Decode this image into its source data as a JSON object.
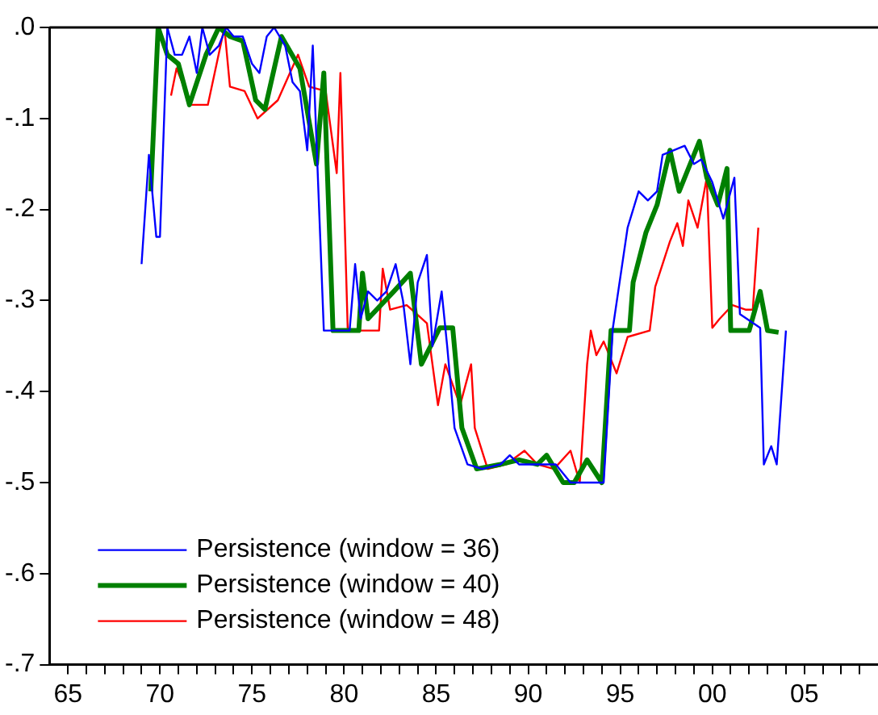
{
  "chart_data": {
    "type": "line",
    "xlim": [
      1964,
      2009
    ],
    "ylim": [
      -0.7,
      0
    ],
    "xticks": [
      {
        "value": 1965,
        "label": "65"
      },
      {
        "value": 1966,
        "label": null
      },
      {
        "value": 1967,
        "label": null
      },
      {
        "value": 1968,
        "label": null
      },
      {
        "value": 1969,
        "label": null
      },
      {
        "value": 1970,
        "label": "70"
      },
      {
        "value": 1971,
        "label": null
      },
      {
        "value": 1972,
        "label": null
      },
      {
        "value": 1973,
        "label": null
      },
      {
        "value": 1974,
        "label": null
      },
      {
        "value": 1975,
        "label": "75"
      },
      {
        "value": 1976,
        "label": null
      },
      {
        "value": 1977,
        "label": null
      },
      {
        "value": 1978,
        "label": null
      },
      {
        "value": 1979,
        "label": null
      },
      {
        "value": 1980,
        "label": "80"
      },
      {
        "value": 1981,
        "label": null
      },
      {
        "value": 1982,
        "label": null
      },
      {
        "value": 1983,
        "label": null
      },
      {
        "value": 1984,
        "label": null
      },
      {
        "value": 1985,
        "label": "85"
      },
      {
        "value": 1986,
        "label": null
      },
      {
        "value": 1987,
        "label": null
      },
      {
        "value": 1988,
        "label": null
      },
      {
        "value": 1989,
        "label": null
      },
      {
        "value": 1990,
        "label": "90"
      },
      {
        "value": 1991,
        "label": null
      },
      {
        "value": 1992,
        "label": null
      },
      {
        "value": 1993,
        "label": null
      },
      {
        "value": 1994,
        "label": null
      },
      {
        "value": 1995,
        "label": "95"
      },
      {
        "value": 1996,
        "label": null
      },
      {
        "value": 1997,
        "label": null
      },
      {
        "value": 1998,
        "label": null
      },
      {
        "value": 1999,
        "label": null
      },
      {
        "value": 2000,
        "label": "00"
      },
      {
        "value": 2001,
        "label": null
      },
      {
        "value": 2002,
        "label": null
      },
      {
        "value": 2003,
        "label": null
      },
      {
        "value": 2004,
        "label": null
      },
      {
        "value": 2005,
        "label": "05"
      },
      {
        "value": 2006,
        "label": null
      },
      {
        "value": 2007,
        "label": null
      },
      {
        "value": 2008,
        "label": null
      }
    ],
    "yticks": [
      {
        "value": -0.7,
        "label": "-.7"
      },
      {
        "value": -0.6,
        "label": "-.6"
      },
      {
        "value": -0.5,
        "label": "-.5"
      },
      {
        "value": -0.4,
        "label": "-.4"
      },
      {
        "value": -0.3,
        "label": "-.3"
      },
      {
        "value": -0.2,
        "label": "-.2"
      },
      {
        "value": -0.1,
        "label": "-.1"
      },
      {
        "value": 0,
        "label": ".0"
      }
    ],
    "grid": false,
    "legend": "bottom left",
    "marker": "none",
    "line_style": "solid",
    "series": [
      {
        "name": "Persistence (window = 36)",
        "color": "#0000ff",
        "x": [
          1969.0,
          1969.4,
          1969.8,
          1970.0,
          1970.4,
          1970.8,
          1971.2,
          1971.6,
          1972.0,
          1972.3,
          1972.7,
          1973.2,
          1973.6,
          1974.0,
          1974.5,
          1975.0,
          1975.4,
          1975.8,
          1976.2,
          1976.8,
          1977.2,
          1977.6,
          1978.0,
          1978.3,
          1978.9,
          1980.3,
          1980.6,
          1980.9,
          1981.3,
          1981.8,
          1982.3,
          1982.8,
          1983.2,
          1983.6,
          1984.0,
          1984.5,
          1984.8,
          1985.3,
          1985.6,
          1986.0,
          1986.7,
          1987.5,
          1988.5,
          1989.0,
          1989.5,
          1990.5,
          1991.5,
          1992.3,
          1994.1,
          1994.6,
          1995.4,
          1996.0,
          1996.5,
          1997.0,
          1997.3,
          1998.5,
          1999.0,
          1999.4,
          2000.0,
          2000.6,
          2001.2,
          2001.5,
          2002.6,
          2002.8,
          2003.2,
          2003.5,
          2004.0
        ],
        "values": [
          -0.26,
          -0.14,
          -0.23,
          -0.23,
          0,
          -0.03,
          -0.03,
          -0.01,
          -0.05,
          0,
          -0.03,
          -0.02,
          0,
          -0.01,
          -0.01,
          -0.04,
          -0.05,
          -0.01,
          0,
          -0.02,
          -0.06,
          -0.07,
          -0.135,
          -0.02,
          -0.333,
          -0.333,
          -0.26,
          -0.32,
          -0.29,
          -0.3,
          -0.29,
          -0.26,
          -0.3,
          -0.37,
          -0.28,
          -0.25,
          -0.35,
          -0.29,
          -0.35,
          -0.44,
          -0.48,
          -0.485,
          -0.48,
          -0.47,
          -0.48,
          -0.48,
          -0.48,
          -0.5,
          -0.5,
          -0.33,
          -0.22,
          -0.18,
          -0.19,
          -0.18,
          -0.14,
          -0.13,
          -0.15,
          -0.145,
          -0.17,
          -0.21,
          -0.165,
          -0.315,
          -0.33,
          -0.48,
          -0.46,
          -0.48,
          -0.333
        ]
      },
      {
        "name": "Persistence (window = 40)",
        "color": "#008000",
        "x": [
          1969.5,
          1969.9,
          1970.4,
          1971.0,
          1971.6,
          1972.5,
          1973.2,
          1973.8,
          1974.5,
          1975.2,
          1975.7,
          1976.6,
          1977.6,
          1978.5,
          1978.9,
          1979.4,
          1980.8,
          1981.0,
          1981.3,
          1982.7,
          1983.6,
          1984.2,
          1985.2,
          1985.9,
          1986.4,
          1987.2,
          1988.5,
          1989.5,
          1990.5,
          1991.0,
          1991.9,
          1992.5,
          1993.2,
          1994.0,
          1994.5,
          1995.5,
          1995.7,
          1996.4,
          1997.0,
          1997.7,
          1998.2,
          1999.3,
          1999.7,
          2000.3,
          2000.8,
          2001.0,
          2002.0,
          2002.6,
          2003.0,
          2003.6
        ],
        "values": [
          -0.18,
          0,
          -0.03,
          -0.04,
          -0.085,
          -0.03,
          0,
          -0.01,
          -0.015,
          -0.08,
          -0.09,
          -0.01,
          -0.045,
          -0.15,
          -0.05,
          -0.333,
          -0.333,
          -0.27,
          -0.32,
          -0.29,
          -0.27,
          -0.37,
          -0.33,
          -0.33,
          -0.44,
          -0.485,
          -0.48,
          -0.475,
          -0.48,
          -0.47,
          -0.5,
          -0.5,
          -0.475,
          -0.5,
          -0.333,
          -0.333,
          -0.28,
          -0.225,
          -0.195,
          -0.135,
          -0.18,
          -0.125,
          -0.165,
          -0.195,
          -0.155,
          -0.333,
          -0.333,
          -0.29,
          -0.333,
          -0.335
        ]
      },
      {
        "name": "Persistence (window = 48)",
        "color": "#ff0000",
        "x": [
          1970.6,
          1970.9,
          1971.7,
          1972.6,
          1973.5,
          1973.8,
          1974.6,
          1975.3,
          1976.4,
          1977.5,
          1978.1,
          1979.0,
          1979.6,
          1979.8,
          1980.2,
          1981.9,
          1982.1,
          1982.5,
          1983.4,
          1984.5,
          1985.1,
          1985.5,
          1986.3,
          1986.9,
          1987.1,
          1987.8,
          1988.8,
          1989.8,
          1990.5,
          1991.4,
          1992.3,
          1992.8,
          1993.2,
          1993.4,
          1993.7,
          1994.1,
          1994.8,
          1995.4,
          1996.6,
          1996.9,
          1997.7,
          1998.1,
          1998.4,
          1998.7,
          1999.2,
          1999.7,
          2000.0,
          2000.4,
          2001.1,
          2001.8,
          2002.2,
          2002.5
        ],
        "values": [
          -0.075,
          -0.045,
          -0.085,
          -0.085,
          0,
          -0.065,
          -0.07,
          -0.1,
          -0.08,
          -0.03,
          -0.065,
          -0.07,
          -0.16,
          -0.05,
          -0.333,
          -0.333,
          -0.265,
          -0.31,
          -0.305,
          -0.325,
          -0.415,
          -0.37,
          -0.415,
          -0.37,
          -0.44,
          -0.485,
          -0.48,
          -0.465,
          -0.48,
          -0.485,
          -0.465,
          -0.5,
          -0.37,
          -0.333,
          -0.36,
          -0.345,
          -0.38,
          -0.34,
          -0.333,
          -0.285,
          -0.235,
          -0.215,
          -0.24,
          -0.19,
          -0.22,
          -0.165,
          -0.33,
          -0.32,
          -0.305,
          -0.31,
          -0.31,
          -0.22
        ]
      }
    ]
  }
}
